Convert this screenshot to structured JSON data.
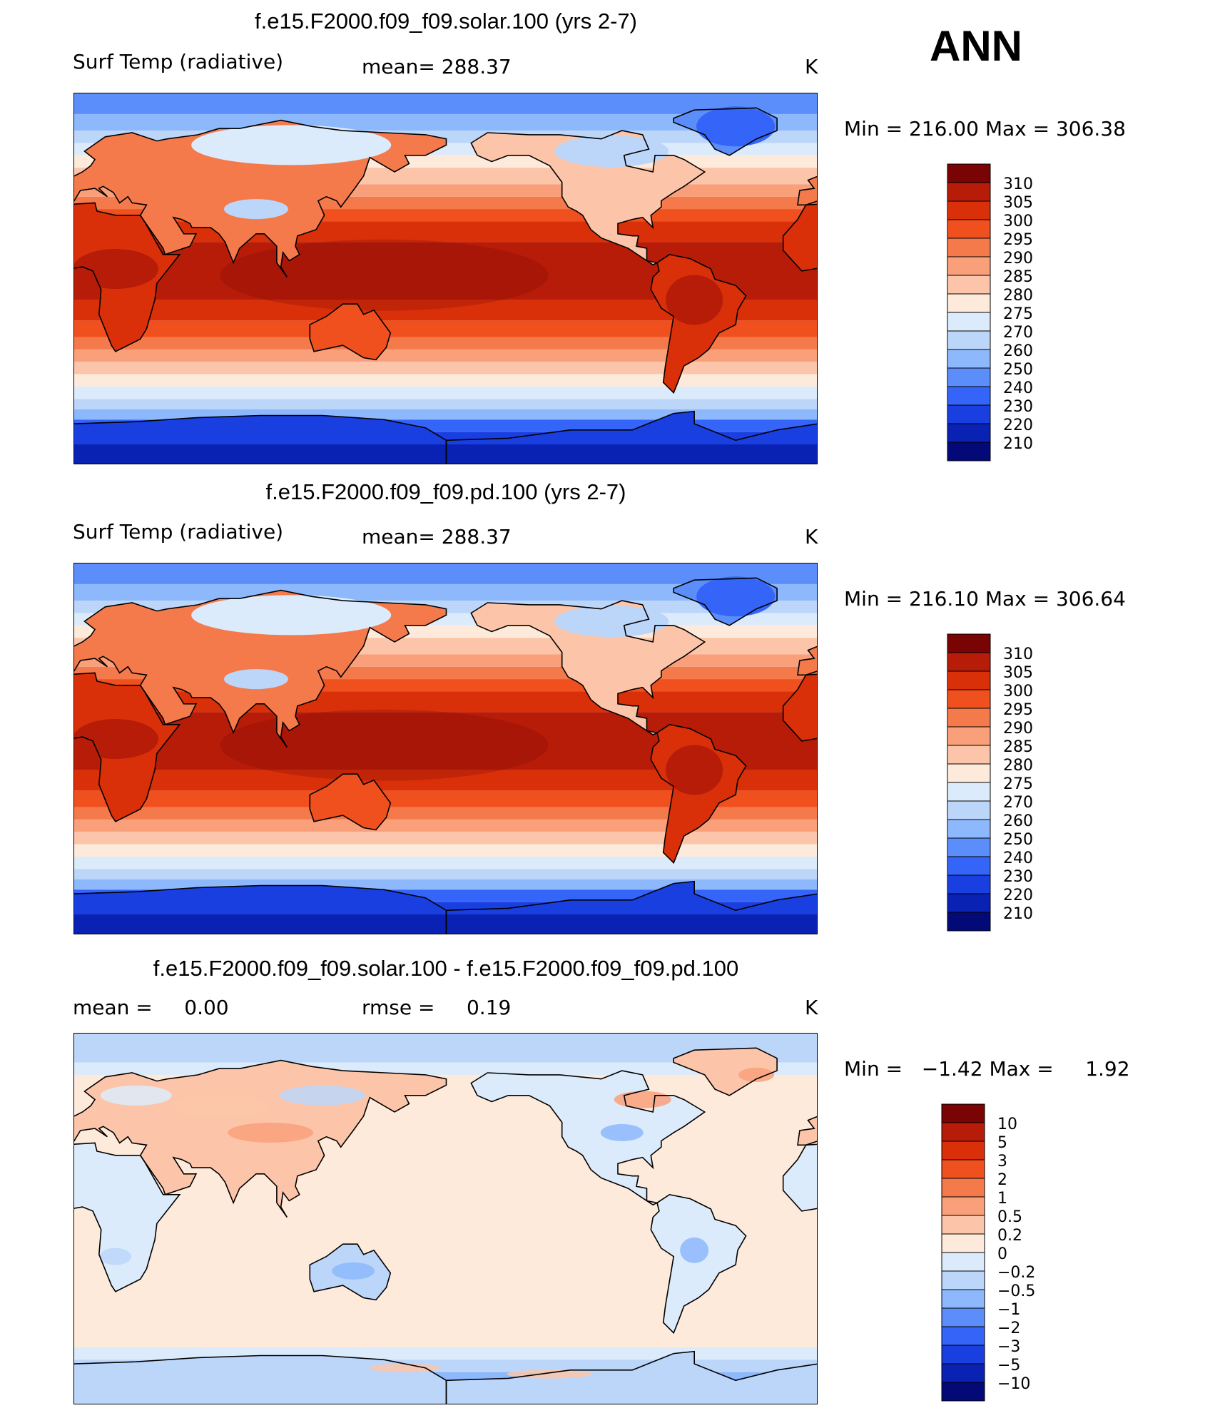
{
  "season": "ANN",
  "panels": [
    {
      "title": "f.e15.F2000.f09_f09.solar.100 (yrs 2-7)",
      "left_label": "Surf Temp (radiative)",
      "mid_label": "mean= 288.37",
      "unit": "K",
      "minmax": "Min = 216.00 Max = 306.38",
      "mode": "abs"
    },
    {
      "title": "f.e15.F2000.f09_f09.pd.100 (yrs 2-7)",
      "left_label": "Surf Temp (radiative)",
      "mid_label": "mean= 288.37",
      "unit": "K",
      "minmax": "Min = 216.10 Max = 306.64",
      "mode": "abs"
    },
    {
      "title": "f.e15.F2000.f09_f09.solar.100 - f.e15.F2000.f09_f09.pd.100",
      "left_label": "mean =     0.00",
      "mid_label": "rmse =     0.19",
      "unit": "K",
      "minmax": "Min =   −1.42 Max =     1.92",
      "mode": "diff"
    }
  ],
  "colorbars": {
    "abs": {
      "labels": [
        "310",
        "305",
        "300",
        "295",
        "290",
        "285",
        "280",
        "275",
        "270",
        "260",
        "250",
        "240",
        "230",
        "220",
        "210"
      ],
      "colors": [
        "#7a0403",
        "#b71c08",
        "#d9300a",
        "#f0501d",
        "#f47a4c",
        "#f9a07b",
        "#fcc5a9",
        "#feeadb",
        "#dcebfb",
        "#bcd6fa",
        "#8db8fb",
        "#5c8efb",
        "#3464f8",
        "#1a3fe0",
        "#0a22b4",
        "#030a78"
      ]
    },
    "diff": {
      "labels": [
        "10",
        "5",
        "3",
        "2",
        "1",
        "0.5",
        "0.2",
        "0",
        "−0.2",
        "−0.5",
        "−1",
        "−2",
        "−3",
        "−5",
        "−10"
      ],
      "colors": [
        "#7a0403",
        "#b71c08",
        "#d9300a",
        "#f0501d",
        "#f47a4c",
        "#f9a07b",
        "#fcc5a9",
        "#feeadb",
        "#dcebfb",
        "#bcd6fa",
        "#8db8fb",
        "#5c8efb",
        "#3464f8",
        "#1a3fe0",
        "#0a22b4",
        "#030a78"
      ]
    }
  },
  "chart_data": [
    {
      "type": "heatmap",
      "title": "f.e15.F2000.f09_f09.solar.100 (yrs 2-7)",
      "variable": "Surf Temp (radiative)",
      "units": "K",
      "mean": 288.37,
      "min": 216.0,
      "max": 306.38,
      "contour_levels": [
        210,
        220,
        230,
        240,
        250,
        260,
        270,
        275,
        280,
        285,
        290,
        295,
        300,
        305,
        310
      ]
    },
    {
      "type": "heatmap",
      "title": "f.e15.F2000.f09_f09.pd.100 (yrs 2-7)",
      "variable": "Surf Temp (radiative)",
      "units": "K",
      "mean": 288.37,
      "min": 216.1,
      "max": 306.64,
      "contour_levels": [
        210,
        220,
        230,
        240,
        250,
        260,
        270,
        275,
        280,
        285,
        290,
        295,
        300,
        305,
        310
      ]
    },
    {
      "type": "heatmap",
      "title": "f.e15.F2000.f09_f09.solar.100 - f.e15.F2000.f09_f09.pd.100",
      "units": "K",
      "mean": 0.0,
      "rmse": 0.19,
      "min": -1.42,
      "max": 1.92,
      "contour_levels": [
        -10,
        -5,
        -3,
        -2,
        -1,
        -0.5,
        -0.2,
        0,
        0.2,
        0.5,
        1,
        2,
        3,
        5,
        10
      ]
    }
  ]
}
